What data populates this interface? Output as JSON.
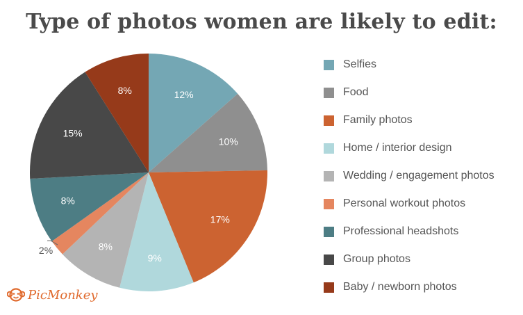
{
  "title": "Type of photos women are likely to edit:",
  "logo_text": "PicMonkey",
  "chart_data": {
    "type": "pie",
    "title": "Type of photos women are likely to edit:",
    "start_angle_deg": 0,
    "direction": "clockwise",
    "legend_position": "right",
    "unit": "%",
    "slices": [
      {
        "label": "Selfies",
        "value": 12,
        "color": "#74a7b4"
      },
      {
        "label": "Food",
        "value": 10,
        "color": "#8f8f8f"
      },
      {
        "label": "Family photos",
        "value": 17,
        "color": "#cc6331"
      },
      {
        "label": "Home / interior design",
        "value": 9,
        "color": "#b0d8dc"
      },
      {
        "label": "Wedding / engagement photos",
        "value": 8,
        "color": "#b4b4b4"
      },
      {
        "label": "Personal workout photos",
        "value": 2,
        "color": "#e5865f"
      },
      {
        "label": "Professional headshots",
        "value": 8,
        "color": "#4d7d84"
      },
      {
        "label": "Group photos",
        "value": 15,
        "color": "#484848"
      },
      {
        "label": "Baby / newborn photos",
        "value": 8,
        "color": "#963a1a"
      }
    ]
  }
}
